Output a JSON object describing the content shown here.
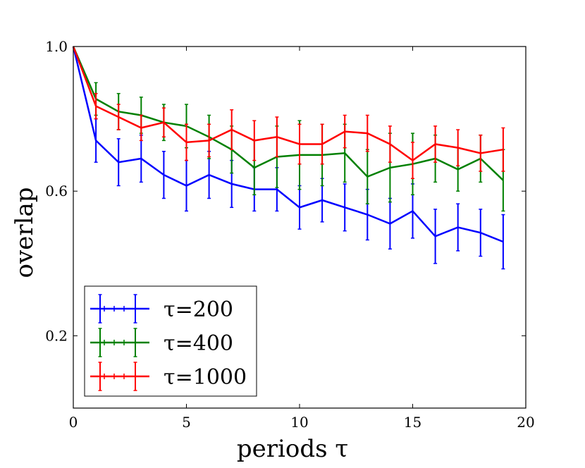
{
  "chart_data": {
    "type": "line",
    "xlabel": "periods τ",
    "ylabel": "overlap",
    "xlim": [
      0,
      20
    ],
    "ylim": [
      0.0,
      1.0
    ],
    "xticks": [
      0,
      5,
      10,
      15,
      20
    ],
    "xtick_labels": [
      "0",
      "5",
      "10",
      "15",
      "20"
    ],
    "yticks": [
      0.2,
      0.6,
      1.0
    ],
    "ytick_labels": [
      "0.2",
      "0.6",
      "1.0"
    ],
    "legend_position": "lower-left",
    "series": [
      {
        "name": "τ=200",
        "color": "#0000ff",
        "x": [
          0,
          1,
          2,
          3,
          4,
          5,
          6,
          7,
          8,
          9,
          10,
          11,
          12,
          13,
          14,
          15,
          16,
          17,
          18,
          19
        ],
        "y": [
          1.0,
          0.74,
          0.68,
          0.69,
          0.645,
          0.615,
          0.645,
          0.62,
          0.605,
          0.605,
          0.555,
          0.575,
          0.555,
          0.535,
          0.51,
          0.545,
          0.475,
          0.5,
          0.485,
          0.46
        ],
        "err": [
          0.0,
          0.06,
          0.065,
          0.065,
          0.065,
          0.07,
          0.065,
          0.065,
          0.06,
          0.06,
          0.06,
          0.06,
          0.065,
          0.07,
          0.07,
          0.075,
          0.075,
          0.065,
          0.065,
          0.075
        ]
      },
      {
        "name": "τ=400",
        "color": "#008000",
        "x": [
          0,
          1,
          2,
          3,
          4,
          5,
          6,
          7,
          8,
          9,
          10,
          11,
          12,
          13,
          14,
          15,
          16,
          17,
          18,
          19
        ],
        "y": [
          1.0,
          0.855,
          0.82,
          0.81,
          0.79,
          0.78,
          0.75,
          0.715,
          0.665,
          0.695,
          0.7,
          0.7,
          0.705,
          0.64,
          0.665,
          0.675,
          0.69,
          0.66,
          0.69,
          0.63
        ],
        "err": [
          0.0,
          0.045,
          0.05,
          0.05,
          0.05,
          0.06,
          0.06,
          0.065,
          0.075,
          0.085,
          0.095,
          0.085,
          0.08,
          0.075,
          0.095,
          0.085,
          0.065,
          0.06,
          0.065,
          0.085
        ]
      },
      {
        "name": "τ=1000",
        "color": "#ff0000",
        "x": [
          0,
          1,
          2,
          3,
          4,
          5,
          6,
          7,
          8,
          9,
          10,
          11,
          12,
          13,
          14,
          15,
          16,
          17,
          18,
          19
        ],
        "y": [
          1.0,
          0.835,
          0.805,
          0.775,
          0.79,
          0.735,
          0.74,
          0.77,
          0.74,
          0.75,
          0.73,
          0.73,
          0.765,
          0.76,
          0.73,
          0.685,
          0.73,
          0.72,
          0.705,
          0.715
        ],
        "err": [
          0.0,
          0.035,
          0.035,
          0.035,
          0.04,
          0.05,
          0.045,
          0.055,
          0.055,
          0.055,
          0.055,
          0.055,
          0.045,
          0.05,
          0.05,
          0.05,
          0.05,
          0.05,
          0.05,
          0.06
        ]
      }
    ]
  }
}
